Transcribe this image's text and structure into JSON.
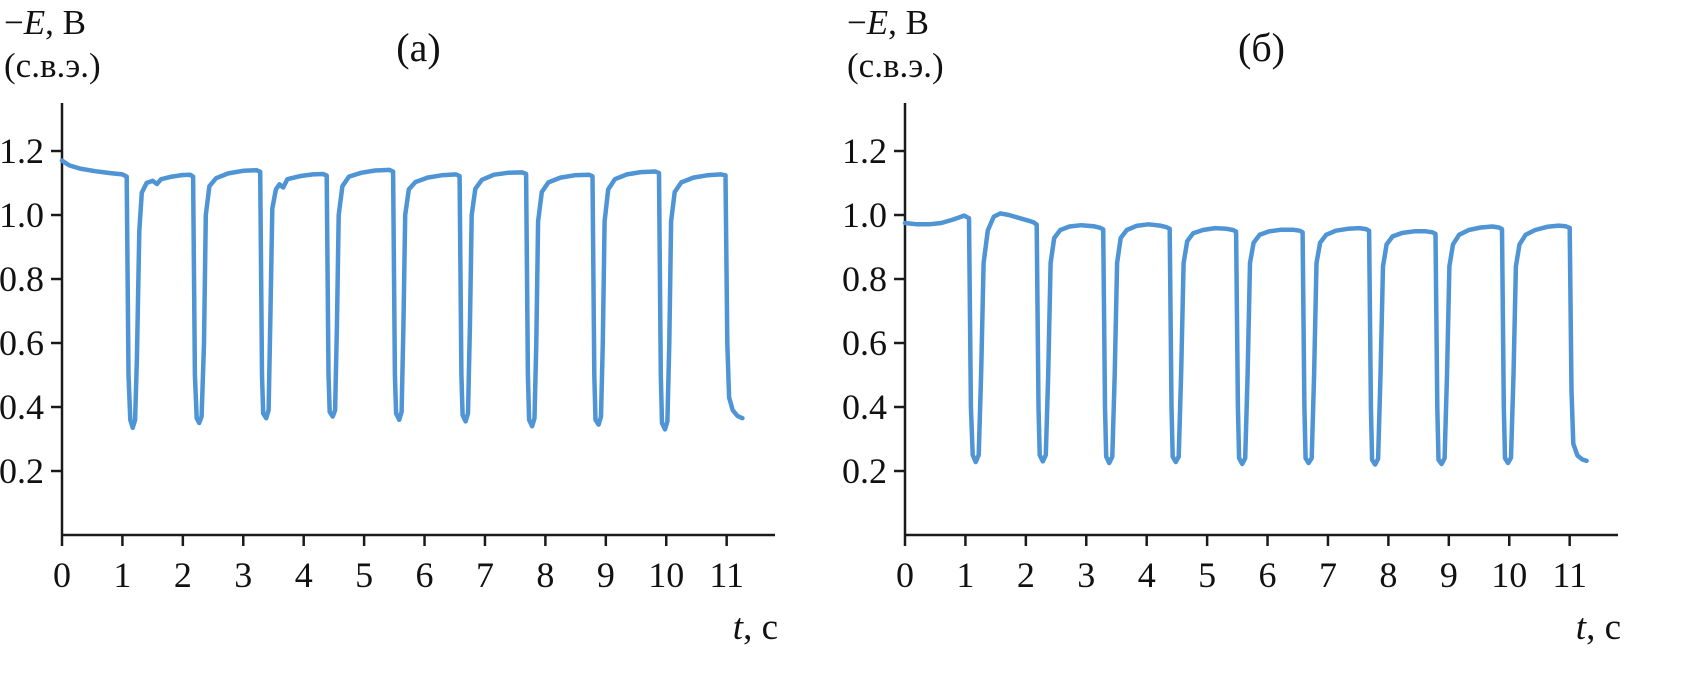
{
  "figure": {
    "description": "Two chronopotentiograms of pulsed electrolysis, electrode potential vs time",
    "background": "#ffffff"
  },
  "chart_data": [
    {
      "id": "a",
      "type": "line",
      "title": "(а)",
      "ylabel_prefix": "−",
      "ylabel_var": "E",
      "ylabel_suffix": ", В",
      "ylabel_line2": "(с.в.э.)",
      "xlabel_var": "t",
      "xlabel_suffix": ", с",
      "xlim": [
        0,
        11.8
      ],
      "ylim": [
        0,
        1.35
      ],
      "xticks": [
        0,
        1,
        2,
        3,
        4,
        5,
        6,
        7,
        8,
        9,
        10,
        11
      ],
      "xtick_labels": [
        "0",
        "1",
        "2",
        "3",
        "4",
        "5",
        "6",
        "7",
        "8",
        "9",
        "10",
        "11"
      ],
      "yticks": [
        0.2,
        0.4,
        0.6,
        0.8,
        1.0,
        1.2
      ],
      "ytick_labels": [
        "0.2",
        "0.4",
        "0.6",
        "0.8",
        "1.0",
        "1.2"
      ],
      "grid": false,
      "legend": "none",
      "line_color": "#4f94d4",
      "axis_color": "#1a1a1a",
      "plateau_level_V": 1.13,
      "period_s": 1.1,
      "pulse_times_s": [
        1.15,
        2.25,
        3.35,
        4.45,
        5.55,
        6.65,
        7.75,
        8.85,
        9.95,
        11.0
      ],
      "pulse_minima_V": [
        0.34,
        0.35,
        0.37,
        0.37,
        0.36,
        0.36,
        0.34,
        0.35,
        0.33,
        0.37
      ],
      "points": [
        [
          0,
          1.17
        ],
        [
          0.12,
          1.155
        ],
        [
          0.3,
          1.145
        ],
        [
          0.55,
          1.137
        ],
        [
          0.8,
          1.131
        ],
        [
          1.0,
          1.127
        ],
        [
          1.07,
          1.12
        ],
        [
          1.1,
          0.5
        ],
        [
          1.13,
          0.36
        ],
        [
          1.17,
          0.335
        ],
        [
          1.21,
          0.36
        ],
        [
          1.24,
          0.55
        ],
        [
          1.28,
          0.95
        ],
        [
          1.32,
          1.07
        ],
        [
          1.4,
          1.1
        ],
        [
          1.5,
          1.107
        ],
        [
          1.57,
          1.097
        ],
        [
          1.64,
          1.112
        ],
        [
          1.82,
          1.12
        ],
        [
          2.0,
          1.125
        ],
        [
          2.12,
          1.126
        ],
        [
          2.17,
          1.12
        ],
        [
          2.2,
          0.5
        ],
        [
          2.23,
          0.365
        ],
        [
          2.27,
          0.35
        ],
        [
          2.31,
          0.37
        ],
        [
          2.35,
          0.6
        ],
        [
          2.38,
          1.0
        ],
        [
          2.44,
          1.09
        ],
        [
          2.55,
          1.115
        ],
        [
          2.75,
          1.13
        ],
        [
          3.0,
          1.138
        ],
        [
          3.22,
          1.14
        ],
        [
          3.28,
          1.135
        ],
        [
          3.31,
          0.5
        ],
        [
          3.33,
          0.38
        ],
        [
          3.38,
          0.365
        ],
        [
          3.42,
          0.39
        ],
        [
          3.45,
          0.7
        ],
        [
          3.48,
          1.02
        ],
        [
          3.54,
          1.08
        ],
        [
          3.6,
          1.096
        ],
        [
          3.66,
          1.086
        ],
        [
          3.73,
          1.112
        ],
        [
          3.95,
          1.122
        ],
        [
          4.15,
          1.127
        ],
        [
          4.32,
          1.128
        ],
        [
          4.38,
          1.123
        ],
        [
          4.41,
          0.5
        ],
        [
          4.43,
          0.385
        ],
        [
          4.48,
          0.37
        ],
        [
          4.52,
          0.39
        ],
        [
          4.55,
          0.65
        ],
        [
          4.58,
          1.0
        ],
        [
          4.64,
          1.09
        ],
        [
          4.75,
          1.12
        ],
        [
          4.95,
          1.132
        ],
        [
          5.18,
          1.139
        ],
        [
          5.42,
          1.141
        ],
        [
          5.48,
          1.136
        ],
        [
          5.51,
          0.5
        ],
        [
          5.53,
          0.38
        ],
        [
          5.58,
          0.36
        ],
        [
          5.62,
          0.385
        ],
        [
          5.65,
          0.65
        ],
        [
          5.68,
          1.0
        ],
        [
          5.74,
          1.08
        ],
        [
          5.85,
          1.103
        ],
        [
          6.05,
          1.117
        ],
        [
          6.28,
          1.124
        ],
        [
          6.52,
          1.127
        ],
        [
          6.58,
          1.122
        ],
        [
          6.61,
          0.5
        ],
        [
          6.63,
          0.375
        ],
        [
          6.68,
          0.355
        ],
        [
          6.72,
          0.38
        ],
        [
          6.75,
          0.65
        ],
        [
          6.78,
          1.0
        ],
        [
          6.84,
          1.082
        ],
        [
          6.95,
          1.11
        ],
        [
          7.15,
          1.126
        ],
        [
          7.38,
          1.132
        ],
        [
          7.62,
          1.133
        ],
        [
          7.68,
          1.128
        ],
        [
          7.71,
          0.5
        ],
        [
          7.73,
          0.36
        ],
        [
          7.78,
          0.34
        ],
        [
          7.82,
          0.365
        ],
        [
          7.85,
          0.6
        ],
        [
          7.88,
          0.98
        ],
        [
          7.94,
          1.072
        ],
        [
          8.05,
          1.102
        ],
        [
          8.25,
          1.117
        ],
        [
          8.48,
          1.124
        ],
        [
          8.72,
          1.126
        ],
        [
          8.78,
          1.121
        ],
        [
          8.81,
          0.5
        ],
        [
          8.83,
          0.36
        ],
        [
          8.88,
          0.345
        ],
        [
          8.92,
          0.37
        ],
        [
          8.95,
          0.6
        ],
        [
          8.98,
          0.98
        ],
        [
          9.04,
          1.08
        ],
        [
          9.15,
          1.112
        ],
        [
          9.35,
          1.127
        ],
        [
          9.58,
          1.134
        ],
        [
          9.82,
          1.136
        ],
        [
          9.88,
          1.131
        ],
        [
          9.91,
          0.5
        ],
        [
          9.93,
          0.35
        ],
        [
          9.98,
          0.33
        ],
        [
          10.02,
          0.355
        ],
        [
          10.05,
          0.6
        ],
        [
          10.08,
          0.98
        ],
        [
          10.14,
          1.072
        ],
        [
          10.25,
          1.102
        ],
        [
          10.45,
          1.117
        ],
        [
          10.68,
          1.124
        ],
        [
          10.9,
          1.127
        ],
        [
          10.98,
          1.124
        ],
        [
          11.01,
          0.6
        ],
        [
          11.04,
          0.43
        ],
        [
          11.1,
          0.39
        ],
        [
          11.18,
          0.372
        ],
        [
          11.26,
          0.365
        ]
      ]
    },
    {
      "id": "b",
      "type": "line",
      "title": "(б)",
      "ylabel_prefix": "−",
      "ylabel_var": "E",
      "ylabel_suffix": ", В",
      "ylabel_line2": "(с.в.э.)",
      "xlabel_var": "t",
      "xlabel_suffix": ", с",
      "xlim": [
        0,
        11.8
      ],
      "ylim": [
        0,
        1.35
      ],
      "xticks": [
        0,
        1,
        2,
        3,
        4,
        5,
        6,
        7,
        8,
        9,
        10,
        11
      ],
      "xtick_labels": [
        "0",
        "1",
        "2",
        "3",
        "4",
        "5",
        "6",
        "7",
        "8",
        "9",
        "10",
        "11"
      ],
      "yticks": [
        0.2,
        0.4,
        0.6,
        0.8,
        1.0,
        1.2
      ],
      "ytick_labels": [
        "0.2",
        "0.4",
        "0.6",
        "0.8",
        "1.0",
        "1.2"
      ],
      "grid": false,
      "legend": "none",
      "line_color": "#4f94d4",
      "axis_color": "#1a1a1a",
      "plateau_level_V": 0.97,
      "period_s": 1.1,
      "pulse_times_s": [
        1.15,
        2.25,
        3.35,
        4.45,
        5.55,
        6.65,
        7.75,
        8.85,
        9.95,
        11.05
      ],
      "pulse_minima_V": [
        0.23,
        0.23,
        0.23,
        0.23,
        0.22,
        0.23,
        0.22,
        0.22,
        0.23,
        0.23
      ],
      "points": [
        [
          0,
          0.975
        ],
        [
          0.2,
          0.971
        ],
        [
          0.4,
          0.971
        ],
        [
          0.6,
          0.975
        ],
        [
          0.8,
          0.986
        ],
        [
          0.98,
          0.998
        ],
        [
          1.06,
          0.99
        ],
        [
          1.09,
          0.4
        ],
        [
          1.12,
          0.25
        ],
        [
          1.17,
          0.228
        ],
        [
          1.22,
          0.25
        ],
        [
          1.26,
          0.5
        ],
        [
          1.3,
          0.85
        ],
        [
          1.37,
          0.952
        ],
        [
          1.47,
          0.995
        ],
        [
          1.58,
          1.005
        ],
        [
          1.72,
          1.0
        ],
        [
          1.9,
          0.99
        ],
        [
          2.05,
          0.982
        ],
        [
          2.13,
          0.977
        ],
        [
          2.18,
          0.97
        ],
        [
          2.21,
          0.4
        ],
        [
          2.23,
          0.25
        ],
        [
          2.28,
          0.23
        ],
        [
          2.33,
          0.25
        ],
        [
          2.37,
          0.5
        ],
        [
          2.41,
          0.85
        ],
        [
          2.47,
          0.928
        ],
        [
          2.57,
          0.953
        ],
        [
          2.72,
          0.964
        ],
        [
          2.92,
          0.968
        ],
        [
          3.12,
          0.965
        ],
        [
          3.23,
          0.96
        ],
        [
          3.28,
          0.955
        ],
        [
          3.31,
          0.4
        ],
        [
          3.33,
          0.245
        ],
        [
          3.38,
          0.225
        ],
        [
          3.43,
          0.245
        ],
        [
          3.47,
          0.5
        ],
        [
          3.51,
          0.85
        ],
        [
          3.57,
          0.928
        ],
        [
          3.67,
          0.953
        ],
        [
          3.83,
          0.966
        ],
        [
          4.03,
          0.971
        ],
        [
          4.22,
          0.967
        ],
        [
          4.33,
          0.962
        ],
        [
          4.38,
          0.957
        ],
        [
          4.41,
          0.4
        ],
        [
          4.43,
          0.245
        ],
        [
          4.48,
          0.228
        ],
        [
          4.53,
          0.245
        ],
        [
          4.57,
          0.5
        ],
        [
          4.61,
          0.85
        ],
        [
          4.67,
          0.918
        ],
        [
          4.77,
          0.943
        ],
        [
          4.93,
          0.953
        ],
        [
          5.13,
          0.959
        ],
        [
          5.32,
          0.957
        ],
        [
          5.43,
          0.953
        ],
        [
          5.48,
          0.948
        ],
        [
          5.51,
          0.4
        ],
        [
          5.53,
          0.24
        ],
        [
          5.58,
          0.222
        ],
        [
          5.63,
          0.24
        ],
        [
          5.67,
          0.5
        ],
        [
          5.71,
          0.85
        ],
        [
          5.77,
          0.913
        ],
        [
          5.87,
          0.938
        ],
        [
          6.03,
          0.949
        ],
        [
          6.23,
          0.954
        ],
        [
          6.42,
          0.954
        ],
        [
          6.53,
          0.951
        ],
        [
          6.58,
          0.946
        ],
        [
          6.61,
          0.4
        ],
        [
          6.63,
          0.24
        ],
        [
          6.68,
          0.225
        ],
        [
          6.73,
          0.24
        ],
        [
          6.77,
          0.5
        ],
        [
          6.81,
          0.85
        ],
        [
          6.87,
          0.913
        ],
        [
          6.97,
          0.938
        ],
        [
          7.13,
          0.951
        ],
        [
          7.33,
          0.957
        ],
        [
          7.52,
          0.959
        ],
        [
          7.63,
          0.956
        ],
        [
          7.68,
          0.951
        ],
        [
          7.71,
          0.4
        ],
        [
          7.73,
          0.235
        ],
        [
          7.78,
          0.22
        ],
        [
          7.83,
          0.238
        ],
        [
          7.87,
          0.5
        ],
        [
          7.91,
          0.84
        ],
        [
          7.97,
          0.908
        ],
        [
          8.07,
          0.933
        ],
        [
          8.23,
          0.944
        ],
        [
          8.43,
          0.949
        ],
        [
          8.62,
          0.949
        ],
        [
          8.73,
          0.946
        ],
        [
          8.78,
          0.941
        ],
        [
          8.81,
          0.4
        ],
        [
          8.83,
          0.235
        ],
        [
          8.88,
          0.222
        ],
        [
          8.93,
          0.24
        ],
        [
          8.97,
          0.5
        ],
        [
          9.01,
          0.84
        ],
        [
          9.07,
          0.908
        ],
        [
          9.17,
          0.938
        ],
        [
          9.33,
          0.953
        ],
        [
          9.53,
          0.961
        ],
        [
          9.72,
          0.964
        ],
        [
          9.83,
          0.961
        ],
        [
          9.88,
          0.956
        ],
        [
          9.91,
          0.4
        ],
        [
          9.93,
          0.24
        ],
        [
          9.98,
          0.225
        ],
        [
          10.03,
          0.242
        ],
        [
          10.07,
          0.5
        ],
        [
          10.11,
          0.84
        ],
        [
          10.17,
          0.908
        ],
        [
          10.27,
          0.938
        ],
        [
          10.43,
          0.953
        ],
        [
          10.63,
          0.963
        ],
        [
          10.82,
          0.967
        ],
        [
          10.93,
          0.965
        ],
        [
          11.0,
          0.96
        ],
        [
          11.03,
          0.45
        ],
        [
          11.06,
          0.285
        ],
        [
          11.13,
          0.248
        ],
        [
          11.21,
          0.236
        ],
        [
          11.28,
          0.232
        ]
      ]
    }
  ]
}
